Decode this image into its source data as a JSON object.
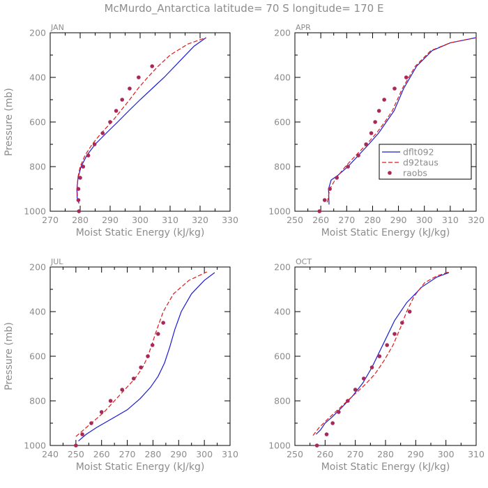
{
  "page_title": "McMurdo_Antarctica  latitude= 70 S longitude= 170 E",
  "colors": {
    "dflt092": "#1a1ad8",
    "d92taus": "#e01818",
    "raobs": "#a8285a",
    "text": "#8c8c8c"
  },
  "chart_data": [
    {
      "type": "line",
      "panel": "JAN",
      "xlabel": "Moist Static Energy (kJ/kg)",
      "ylabel": "Pressure (mb)",
      "xlim": [
        270,
        330
      ],
      "ylim": [
        1000,
        200
      ],
      "xticks": [
        "270",
        "280",
        "290",
        "300",
        "310",
        "320",
        "330"
      ],
      "yticks": [
        "200",
        "400",
        "600",
        "800",
        "1000"
      ],
      "grid": false,
      "legend": false,
      "series": [
        {
          "name": "dflt092",
          "style": "solid",
          "x": [
            279.6,
            279,
            278.9,
            279.3,
            280.3,
            282.2,
            285,
            288.7,
            292.5,
            296.2,
            300,
            304,
            308,
            313,
            318,
            322
          ],
          "y": [
            965,
            940,
            900,
            850,
            800,
            750,
            700,
            650,
            600,
            550,
            500,
            450,
            400,
            330,
            260,
            222
          ]
        },
        {
          "name": "d92taus",
          "style": "dashed",
          "x": [
            279.5,
            279.1,
            279,
            279.2,
            280,
            281.6,
            284,
            287,
            290.5,
            293.5,
            296.5,
            299.3,
            302.5,
            306,
            310,
            316,
            322
          ],
          "y": [
            960,
            940,
            900,
            850,
            800,
            750,
            700,
            650,
            600,
            550,
            500,
            450,
            400,
            350,
            300,
            250,
            222
          ]
        },
        {
          "name": "raobs",
          "style": "marker",
          "x": [
            279.6,
            279.4,
            279.4,
            280,
            281,
            282.7,
            284.8,
            287.5,
            290,
            292,
            294,
            296.5,
            299.5,
            304
          ],
          "y": [
            1000,
            950,
            900,
            850,
            800,
            750,
            700,
            650,
            600,
            550,
            500,
            450,
            400,
            350
          ]
        }
      ]
    },
    {
      "type": "line",
      "panel": "APR",
      "xlabel": "Moist Static Energy (kJ/kg)",
      "ylabel": "",
      "xlim": [
        250,
        320
      ],
      "ylim": [
        1000,
        200
      ],
      "xticks": [
        "250",
        "260",
        "270",
        "280",
        "290",
        "300",
        "310",
        "320"
      ],
      "yticks": [
        "200",
        "400",
        "600",
        "800",
        "1000"
      ],
      "grid": false,
      "legend": true,
      "legend_position": "center-right",
      "series": [
        {
          "name": "dflt092",
          "style": "solid",
          "x": [
            263.2,
            263,
            264,
            266.5,
            270.5,
            274.5,
            278.5,
            282.3,
            285.3,
            288.3,
            292,
            297,
            303,
            310,
            320
          ],
          "y": [
            970,
            900,
            860,
            840,
            800,
            750,
            700,
            650,
            600,
            550,
            450,
            350,
            280,
            245,
            222
          ]
        },
        {
          "name": "d92taus",
          "style": "dashed",
          "x": [
            262.5,
            263.5,
            266,
            269.5,
            273.5,
            277.7,
            281.5,
            284.7,
            287.6,
            291.5,
            296.5,
            302.5,
            310,
            320
          ],
          "y": [
            960,
            900,
            850,
            800,
            750,
            700,
            650,
            600,
            550,
            450,
            350,
            280,
            245,
            222
          ]
        },
        {
          "name": "raobs",
          "style": "marker",
          "x": [
            259.5,
            261.5,
            263.5,
            266.2,
            270.5,
            274.5,
            277.5,
            279.5,
            281,
            282.5,
            284.5,
            288.5,
            293
          ],
          "y": [
            1000,
            950,
            900,
            850,
            800,
            750,
            700,
            650,
            600,
            550,
            500,
            450,
            400
          ]
        }
      ]
    },
    {
      "type": "line",
      "panel": "JUL",
      "xlabel": "Moist Static Energy (kJ/kg)",
      "ylabel": "Pressure (mb)",
      "xlim": [
        240,
        310
      ],
      "ylim": [
        1000,
        200
      ],
      "xticks": [
        "240",
        "250",
        "260",
        "270",
        "280",
        "290",
        "300",
        "310"
      ],
      "yticks": [
        "200",
        "400",
        "600",
        "800",
        "1000"
      ],
      "grid": false,
      "legend": false,
      "series": [
        {
          "name": "dflt092",
          "style": "solid",
          "x": [
            251,
            254,
            258,
            264,
            270,
            275,
            279,
            282,
            284.5,
            286.5,
            288.5,
            291,
            295,
            300,
            304
          ],
          "y": [
            980,
            950,
            920,
            880,
            840,
            790,
            740,
            690,
            630,
            560,
            480,
            400,
            320,
            260,
            225
          ]
        },
        {
          "name": "d92taus",
          "style": "dashed",
          "x": [
            250,
            253,
            257,
            261,
            265,
            269,
            273,
            276,
            278,
            279.5,
            281.5,
            284,
            288,
            294,
            301
          ],
          "y": [
            960,
            930,
            890,
            850,
            800,
            750,
            700,
            650,
            600,
            550,
            480,
            400,
            320,
            260,
            222
          ]
        },
        {
          "name": "raobs",
          "style": "marker",
          "x": [
            250,
            252.5,
            256,
            260,
            263.5,
            268,
            272.5,
            275.3,
            278,
            279.8,
            282,
            284
          ],
          "y": [
            1000,
            950,
            900,
            850,
            800,
            750,
            700,
            650,
            600,
            550,
            500,
            450
          ]
        }
      ]
    },
    {
      "type": "line",
      "panel": "OCT",
      "xlabel": "Moist Static Energy (kJ/kg)",
      "ylabel": "",
      "xlim": [
        250,
        310
      ],
      "ylim": [
        1000,
        200
      ],
      "xticks": [
        "250",
        "260",
        "270",
        "280",
        "290",
        "300",
        "310"
      ],
      "yticks": [
        "200",
        "400",
        "600",
        "800",
        "1000"
      ],
      "grid": false,
      "legend": false,
      "series": [
        {
          "name": "dflt092",
          "style": "solid",
          "x": [
            257,
            258.5,
            260,
            262.5,
            265.5,
            269,
            272.5,
            275.5,
            278,
            280.5,
            283,
            287,
            292,
            297,
            301
          ],
          "y": [
            950,
            930,
            900,
            870,
            830,
            780,
            720,
            650,
            580,
            510,
            440,
            360,
            290,
            245,
            225
          ]
        },
        {
          "name": "d92taus",
          "style": "dashed",
          "x": [
            256,
            258,
            261,
            265,
            269,
            273,
            276.5,
            279.5,
            282.5,
            285,
            287,
            289.5,
            293,
            297,
            301
          ],
          "y": [
            955,
            920,
            880,
            830,
            780,
            730,
            680,
            620,
            550,
            470,
            400,
            330,
            270,
            240,
            222
          ]
        },
        {
          "name": "raobs",
          "style": "marker",
          "x": [
            257.3,
            260.5,
            262.5,
            264.5,
            267.5,
            270,
            272.8,
            275.5,
            278,
            280.5,
            283,
            285.5,
            288
          ],
          "y": [
            1000,
            950,
            900,
            850,
            800,
            750,
            700,
            650,
            600,
            550,
            500,
            450,
            400
          ]
        }
      ]
    }
  ]
}
